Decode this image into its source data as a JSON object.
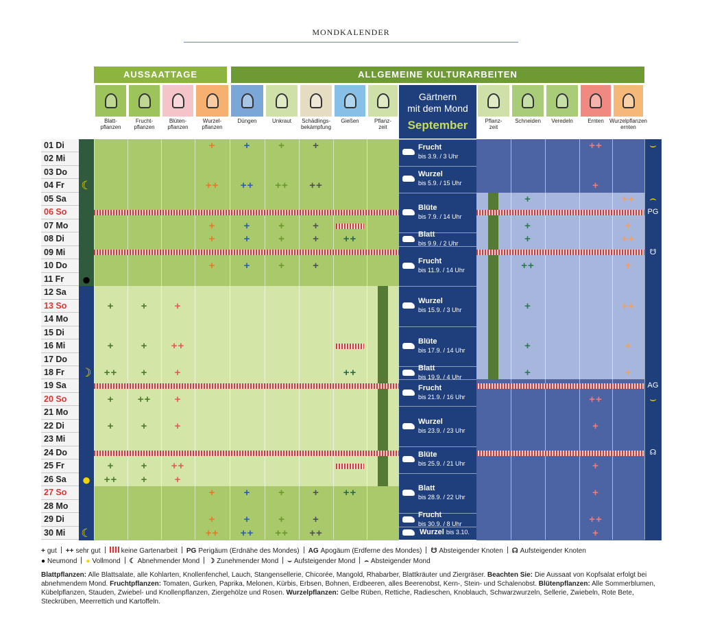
{
  "header": {
    "title": "MONDKALENDER"
  },
  "sections": [
    {
      "label": "AUSSAATTAGE"
    },
    {
      "label": "ALLGEMEINE KULTURARBEITEN"
    }
  ],
  "columns": [
    {
      "label": "Blatt-\npflanzen",
      "color": "#4a7d2a",
      "icon": "#9cc45a"
    },
    {
      "label": "Frucht-\npflanzen",
      "color": "#4a7d2a",
      "icon": "#9cc45a"
    },
    {
      "label": "Blüten-\npflanzen",
      "color": "#e05a5a",
      "icon": "#f4c4c8"
    },
    {
      "label": "Wurzel-\npflanzen",
      "color": "#e8782a",
      "icon": "#f6b070"
    },
    {
      "label": "Düngen",
      "color": "#2a5fb0",
      "icon": "#7aa6d8"
    },
    {
      "label": "Unkraut",
      "color": "#6a9a2a",
      "icon": "#cfe0a8"
    },
    {
      "label": "Schädlings-\nbekämpfung",
      "color": "#505050",
      "icon": "#e6dcc2"
    },
    {
      "label": "Gießen",
      "color": "#2a6a4a",
      "icon": "#86c0e6"
    },
    {
      "label": "Pflanz-\nzeit",
      "color": "#4a7a2a",
      "icon": "#cfe0a8"
    },
    {
      "label": "Pflanz-\nzeit",
      "color": "#4a7a2a",
      "icon": "#cfe0a8"
    },
    {
      "label": "Schneiden",
      "color": "#2a7a50",
      "icon": "#a8cc78"
    },
    {
      "label": "Veredeln",
      "color": "#2a7a50",
      "icon": "#a8cc78"
    },
    {
      "label": "Ernten",
      "color": "#f07a7a",
      "icon": "#f08a80"
    },
    {
      "label": "Wurzelpflanzen\nernten",
      "color": "#f0a060",
      "icon": "#f6b878"
    }
  ],
  "center": {
    "title": "Gärtnern\nmit dem Mond",
    "month": "September"
  },
  "planting_left": [
    12,
    26
  ],
  "planting_right": [
    5,
    18
  ],
  "rows": [
    {
      "day": "01 Di",
      "cells": {
        "3": "+",
        "4": "+",
        "5": "+",
        "6": "+",
        "12": "++"
      },
      "side": "⌣"
    },
    {
      "day": "02 Mi",
      "cells": {}
    },
    {
      "day": "03 Do",
      "cells": {}
    },
    {
      "day": "04 Fr",
      "cells": {
        "3": "++",
        "4": "++",
        "5": "++",
        "6": "++",
        "12": "+"
      },
      "moon": "Abnehmender Mond"
    },
    {
      "day": "05 Sa",
      "cells": {
        "10": "+",
        "13": "++"
      },
      "side": "⌢"
    },
    {
      "day": "06 So",
      "cells": {},
      "sunday": true,
      "no_work": true,
      "side": "PG"
    },
    {
      "day": "07 Mo",
      "cells": {
        "3": "+",
        "4": "+",
        "5": "+",
        "6": "+",
        "10": "+",
        "13": "+"
      },
      "water_pause": true
    },
    {
      "day": "08 Di",
      "cells": {
        "3": "+",
        "4": "+",
        "5": "+",
        "6": "+",
        "7": "++",
        "10": "+",
        "13": "++"
      }
    },
    {
      "day": "09 Mi",
      "cells": {},
      "no_work": true,
      "side": "☋"
    },
    {
      "day": "10 Do",
      "cells": {
        "3": "+",
        "4": "+",
        "5": "+",
        "6": "+",
        "10": "++",
        "13": "+"
      }
    },
    {
      "day": "11 Fr",
      "cells": {},
      "moon": "Neumond"
    },
    {
      "day": "12 Sa",
      "cells": {}
    },
    {
      "day": "13 So",
      "cells": {
        "0": "+",
        "1": "+",
        "2": "+",
        "10": "+",
        "13": "++"
      },
      "sunday": true
    },
    {
      "day": "14 Mo",
      "cells": {}
    },
    {
      "day": "15 Di",
      "cells": {}
    },
    {
      "day": "16 Mi",
      "cells": {
        "0": "+",
        "1": "+",
        "2": "++",
        "10": "+",
        "13": "+"
      },
      "water_pause": true
    },
    {
      "day": "17 Do",
      "cells": {}
    },
    {
      "day": "18 Fr",
      "cells": {
        "0": "++",
        "1": "+",
        "2": "+",
        "7": "++",
        "10": "+",
        "13": "+"
      },
      "moon": "Zunehmender Mond"
    },
    {
      "day": "19 Sa",
      "cells": {},
      "no_work": true,
      "side": "AG"
    },
    {
      "day": "20 So",
      "cells": {
        "0": "+",
        "1": "++",
        "2": "+",
        "12": "++"
      },
      "sunday": true,
      "side": "⌣"
    },
    {
      "day": "21 Mo",
      "cells": {}
    },
    {
      "day": "22 Di",
      "cells": {
        "0": "+",
        "1": "+",
        "2": "+",
        "12": "+"
      }
    },
    {
      "day": "23 Mi",
      "cells": {}
    },
    {
      "day": "24 Do",
      "cells": {},
      "no_work": true,
      "side": "☊"
    },
    {
      "day": "25 Fr",
      "cells": {
        "0": "+",
        "1": "+",
        "2": "++",
        "12": "+"
      },
      "water_pause": true
    },
    {
      "day": "26 Sa",
      "cells": {
        "0": "++",
        "1": "+",
        "2": "+"
      },
      "moon": "Vollmond"
    },
    {
      "day": "27 So",
      "cells": {
        "3": "+",
        "4": "+",
        "5": "+",
        "6": "+",
        "7": "++",
        "12": "+"
      },
      "sunday": true
    },
    {
      "day": "28 Mo",
      "cells": {}
    },
    {
      "day": "29 Di",
      "cells": {
        "3": "+",
        "4": "+",
        "5": "+",
        "6": "+",
        "12": "++"
      }
    },
    {
      "day": "30 Mi",
      "cells": {
        "3": "++",
        "4": "++",
        "5": "++",
        "6": "++",
        "12": "+"
      },
      "moon": "Abnehmender Mond"
    }
  ],
  "signs": [
    {
      "sign": "Frucht",
      "until": "bis 3.9. / 3 Uhr",
      "days": [
        1,
        2
      ]
    },
    {
      "sign": "Wurzel",
      "until": "bis 5.9. / 15 Uhr",
      "days": [
        3,
        4
      ]
    },
    {
      "sign": "Blüte",
      "until": "bis 7.9. / 14 Uhr",
      "days": [
        5,
        7
      ]
    },
    {
      "sign": "Blatt",
      "until": "bis 9.9. / 2 Uhr",
      "days": [
        8,
        8
      ]
    },
    {
      "sign": "Frucht",
      "until": "bis 11.9. / 14 Uhr",
      "days": [
        9,
        11
      ]
    },
    {
      "sign": "Wurzel",
      "until": "bis 15.9. / 3 Uhr",
      "days": [
        12,
        14
      ]
    },
    {
      "sign": "Blüte",
      "until": "bis 17.9. / 14 Uhr",
      "days": [
        15,
        17
      ]
    },
    {
      "sign": "Blatt",
      "until": "bis 19.9. / 4 Uhr",
      "days": [
        18,
        18
      ]
    },
    {
      "sign": "Frucht",
      "until": "bis 21.9. / 16 Uhr",
      "days": [
        19,
        20
      ]
    },
    {
      "sign": "Wurzel",
      "until": "bis 23.9. / 23 Uhr",
      "days": [
        21,
        23
      ]
    },
    {
      "sign": "Blüte",
      "until": "bis 25.9. / 21 Uhr",
      "days": [
        24,
        25
      ]
    },
    {
      "sign": "Blatt",
      "until": "bis 28.9. / 22 Uhr",
      "days": [
        26,
        28
      ]
    },
    {
      "sign": "Frucht",
      "until": "bis 30.9. / 8 Uhr",
      "days": [
        29,
        29
      ]
    },
    {
      "sign": "Wurzel",
      "until": "bis 3.10.",
      "days": [
        30,
        30
      ],
      "one_line": true
    }
  ],
  "legend": [
    [
      {
        "symbol": "+",
        "text": "gut"
      },
      {
        "symbol": "++",
        "text": "sehr gut"
      },
      {
        "hatch": true,
        "text": "keine Gartenarbeit"
      },
      {
        "symbol": "PG",
        "text": "Perigäum (Erdnähe des Mondes)"
      },
      {
        "symbol": "AG",
        "text": "Apogäum (Erdferne des Mondes)"
      },
      {
        "symbol": "☋",
        "text": "Absteigender Knoten"
      },
      {
        "symbol": "☊",
        "text": "Aufsteigender Knoten"
      }
    ],
    [
      {
        "symbol": "●",
        "text": "Neumond",
        "color": "#000000"
      },
      {
        "symbol": "●",
        "text": "Vollmond",
        "color": "#f2d500"
      },
      {
        "symbol": "☾",
        "text": "Abnehmender Mond"
      },
      {
        "symbol": "☽",
        "text": "Zunehmender Mond"
      },
      {
        "symbol": "⌣",
        "text": "Aufsteigender Mond"
      },
      {
        "symbol": "⌢",
        "text": "Absteigender Mond"
      }
    ]
  ],
  "notes": [
    {
      "bold": true,
      "text": "Blattpflanzen:"
    },
    {
      "text": " Alle Blattsalate, alle Kohlarten, Knollenfenchel, Lauch, Stangensellerie, Chicorée, Mangold, Rhabarber, Blattkräuter und Ziergräser. "
    },
    {
      "bold": true,
      "text": "Beachten Sie:"
    },
    {
      "text": " Die Aussaat von Kopfsalat erfolgt bei abnehmendem Mond. "
    },
    {
      "bold": true,
      "text": "Fruchtpflanzen:"
    },
    {
      "text": " Tomaten, Gurken, Paprika, Melonen, Kürbis, Erbsen, Bohnen, Erdbeeren, alles Beerenobst, Kern-, Stein- und Schalenobst. "
    },
    {
      "bold": true,
      "text": "Blütenpflanzen:"
    },
    {
      "text": " Alle Sommerblumen, Kübelpflanzen, Stauden, Zwiebel- und Knollenpflanzen, Ziergehölze und Rosen. "
    },
    {
      "bold": true,
      "text": "Wurzelpflanzen:"
    },
    {
      "text": " Gelbe Rüben, Rettiche, Radieschen, Knoblauch, Schwarzwurzeln, Sellerie, Zwiebeln, Rote Bete, Steckrüben, Meerrettich und Kartoffeln."
    }
  ]
}
